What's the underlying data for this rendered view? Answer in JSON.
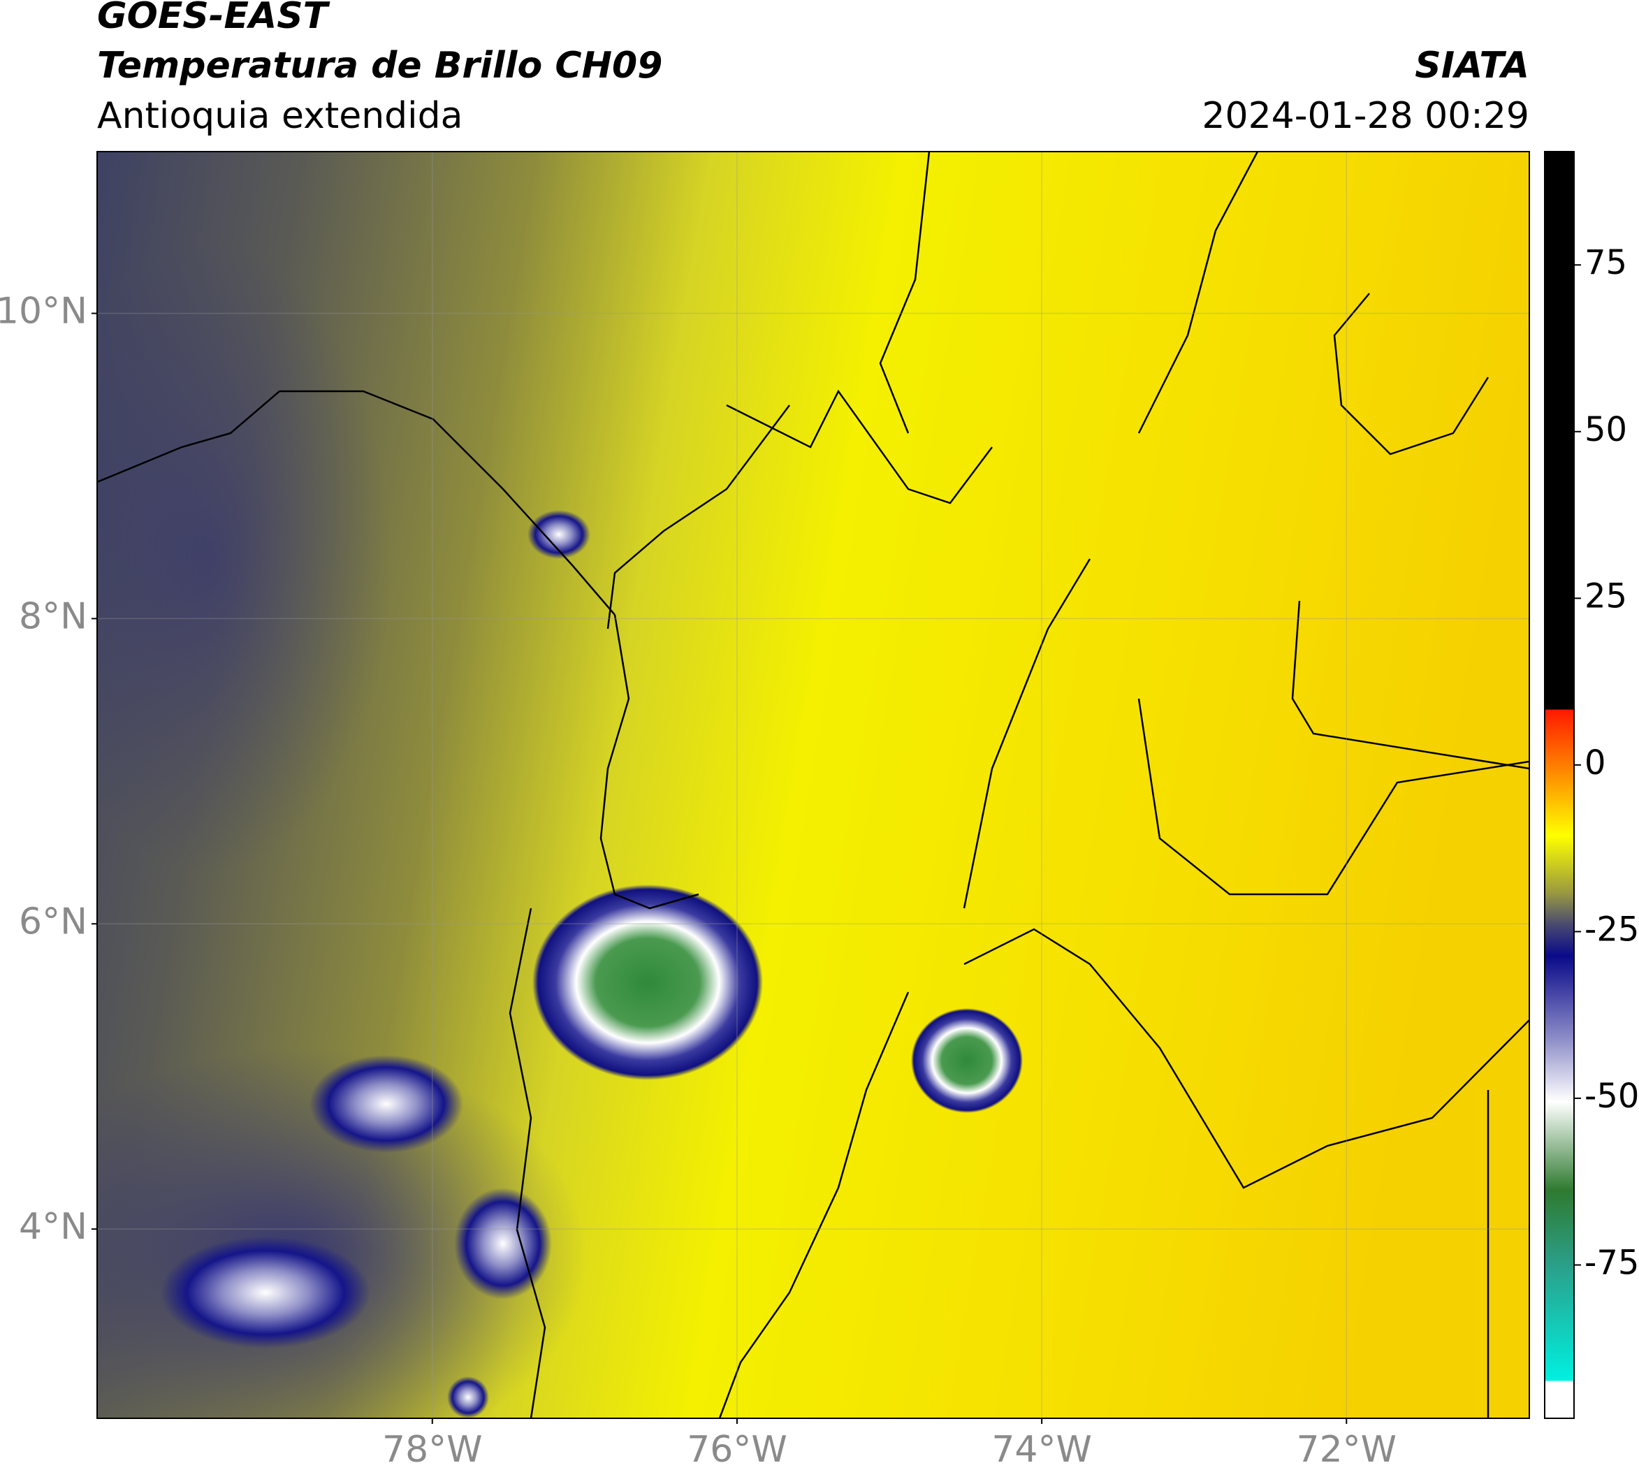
{
  "header": {
    "title": "GOES-EAST",
    "subtitle": "Temperatura de Brillo CH09",
    "region": "Antioquia extendida",
    "agency": "SIATA",
    "timestamp": "2024-01-28 00:29"
  },
  "map": {
    "xlim": [
      -80.2,
      -70.8
    ],
    "ylim": [
      2.76,
      11.06
    ],
    "xticks": [
      {
        "value": -78,
        "label": "78°W"
      },
      {
        "value": -76,
        "label": "76°W"
      },
      {
        "value": -74,
        "label": "74°W"
      },
      {
        "value": -72,
        "label": "72°W"
      }
    ],
    "yticks": [
      {
        "value": 4,
        "label": "4°N"
      },
      {
        "value": 6,
        "label": "6°N"
      },
      {
        "value": 8,
        "label": "8°N"
      },
      {
        "value": 10,
        "label": "10°N"
      }
    ]
  },
  "colorbar": {
    "lim": [
      -98,
      92
    ],
    "ticks": [
      -75,
      -50,
      -25,
      0,
      25,
      50,
      75
    ]
  }
}
